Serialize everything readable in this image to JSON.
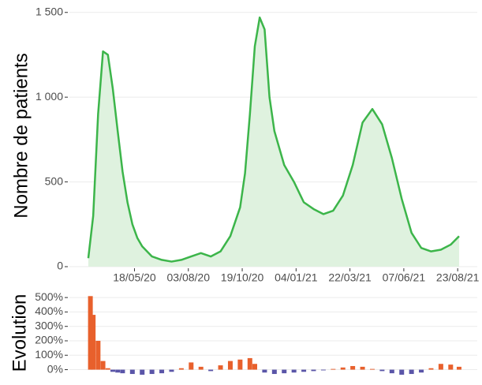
{
  "chart_data": [
    {
      "type": "line",
      "y_label": "Nombre de patients",
      "x": [
        "2020-03-13",
        "2020-03-20",
        "2020-03-27",
        "2020-04-03",
        "2020-04-10",
        "2020-04-17",
        "2020-04-24",
        "2020-05-01",
        "2020-05-08",
        "2020-05-15",
        "2020-05-22",
        "2020-05-29",
        "2020-06-12",
        "2020-06-26",
        "2020-07-10",
        "2020-07-24",
        "2020-08-07",
        "2020-08-21",
        "2020-09-04",
        "2020-09-18",
        "2020-10-02",
        "2020-10-16",
        "2020-10-23",
        "2020-10-30",
        "2020-11-06",
        "2020-11-13",
        "2020-11-20",
        "2020-11-27",
        "2020-12-04",
        "2020-12-18",
        "2021-01-01",
        "2021-01-15",
        "2021-01-29",
        "2021-02-12",
        "2021-02-26",
        "2021-03-12",
        "2021-03-26",
        "2021-04-09",
        "2021-04-23",
        "2021-05-07",
        "2021-05-21",
        "2021-06-04",
        "2021-06-18",
        "2021-07-02",
        "2021-07-16",
        "2021-07-30",
        "2021-08-13",
        "2021-08-25"
      ],
      "series": [
        {
          "name": "Nombre de patients",
          "color": "#3cb54a",
          "fill": "#dff2df",
          "values": [
            50,
            300,
            900,
            1270,
            1250,
            1050,
            800,
            560,
            380,
            250,
            170,
            120,
            60,
            40,
            30,
            40,
            60,
            80,
            60,
            90,
            180,
            350,
            550,
            900,
            1300,
            1470,
            1400,
            1000,
            800,
            600,
            500,
            380,
            340,
            310,
            330,
            420,
            600,
            850,
            930,
            840,
            640,
            400,
            200,
            110,
            90,
            100,
            130,
            180
          ]
        }
      ],
      "xlim": [
        "2020-02-15",
        "2021-09-20"
      ],
      "xticks": [
        {
          "value": "2020-05-18",
          "label": "18/05/20"
        },
        {
          "value": "2020-08-03",
          "label": "03/08/20"
        },
        {
          "value": "2020-10-19",
          "label": "19/10/20"
        },
        {
          "value": "2021-01-04",
          "label": "04/01/21"
        },
        {
          "value": "2021-03-22",
          "label": "22/03/21"
        },
        {
          "value": "2021-06-07",
          "label": "07/06/21"
        },
        {
          "value": "2021-08-23",
          "label": "23/08/21"
        }
      ],
      "ylim": [
        0,
        1550
      ],
      "yticks": [
        0,
        500,
        {
          "value": 1000,
          "label": "1 000"
        },
        {
          "value": 1500,
          "label": "1 500"
        }
      ],
      "grid": true
    },
    {
      "type": "bar",
      "y_label": "Evolution",
      "x": [
        "2020-03-16",
        "2020-03-20",
        "2020-03-27",
        "2020-04-03",
        "2020-04-10",
        "2020-04-17",
        "2020-04-24",
        "2020-05-01",
        "2020-05-15",
        "2020-05-29",
        "2020-06-12",
        "2020-06-26",
        "2020-07-10",
        "2020-07-24",
        "2020-08-07",
        "2020-08-21",
        "2020-09-04",
        "2020-09-18",
        "2020-10-02",
        "2020-10-16",
        "2020-10-30",
        "2020-11-06",
        "2020-11-20",
        "2020-12-04",
        "2020-12-18",
        "2021-01-01",
        "2021-01-15",
        "2021-01-29",
        "2021-02-12",
        "2021-02-26",
        "2021-03-12",
        "2021-03-26",
        "2021-04-09",
        "2021-04-23",
        "2021-05-07",
        "2021-05-21",
        "2021-06-04",
        "2021-06-18",
        "2021-07-02",
        "2021-07-16",
        "2021-07-30",
        "2021-08-13",
        "2021-08-25"
      ],
      "values": [
        510,
        380,
        200,
        60,
        10,
        -15,
        -20,
        -25,
        -30,
        -35,
        -30,
        -25,
        -15,
        10,
        50,
        20,
        -10,
        30,
        60,
        70,
        80,
        40,
        -20,
        -30,
        -25,
        -20,
        -15,
        -10,
        -5,
        5,
        15,
        25,
        20,
        5,
        -10,
        -25,
        -35,
        -30,
        -20,
        10,
        40,
        35,
        20
      ],
      "positive_color": "#e8602c",
      "negative_color": "#5a55a8",
      "xlim": [
        "2020-02-15",
        "2021-09-20"
      ],
      "ylim": [
        -90,
        550
      ],
      "yticks": [
        {
          "value": 0,
          "label": "0%"
        },
        {
          "value": 100,
          "label": "100%"
        },
        {
          "value": 200,
          "label": "200%"
        },
        {
          "value": 300,
          "label": "300%"
        },
        {
          "value": 400,
          "label": "400%"
        },
        {
          "value": 500,
          "label": "500%"
        }
      ],
      "grid": true
    }
  ]
}
